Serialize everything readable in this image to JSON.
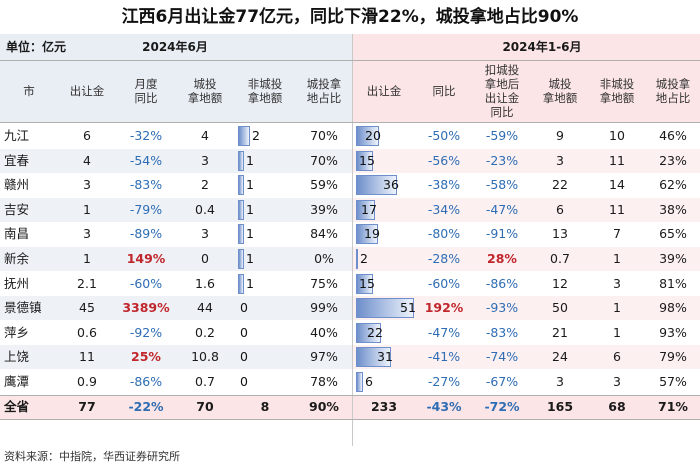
{
  "title": "江西6月出让金77亿元，同比下滑22%，城投拿地占比90%",
  "unit": "单位：亿元",
  "period_left": "2024年6月",
  "period_right": "2024年1-6月",
  "headers": {
    "city": "市",
    "m_rev": "出让金",
    "m_mom": "月度\n同比",
    "m_ct": "城投\n拿地额",
    "m_nct": "非城投\n拿地额",
    "m_share": "城投拿\n地占比",
    "y_rev": "出让金",
    "y_yoy": "同比",
    "y_ex": "扣城投\n拿地后\n出让金\n同比",
    "y_ct": "城投\n拿地额",
    "y_nct": "非城投\n拿地额",
    "y_share": "城投拿\n地占比"
  },
  "rows": [
    {
      "city": "九江",
      "m_rev": "6",
      "m_mom": "-32%",
      "m_ct": "4",
      "m_nct": "2",
      "m_share": "70%",
      "y_rev": "20",
      "y_yoy": "-50%",
      "y_ex": "-59%",
      "y_ct": "9",
      "y_nct": "10",
      "y_share": "46%"
    },
    {
      "city": "宜春",
      "m_rev": "4",
      "m_mom": "-54%",
      "m_ct": "3",
      "m_nct": "1",
      "m_share": "70%",
      "y_rev": "15",
      "y_yoy": "-56%",
      "y_ex": "-23%",
      "y_ct": "3",
      "y_nct": "11",
      "y_share": "23%"
    },
    {
      "city": "赣州",
      "m_rev": "3",
      "m_mom": "-83%",
      "m_ct": "2",
      "m_nct": "1",
      "m_share": "59%",
      "y_rev": "36",
      "y_yoy": "-38%",
      "y_ex": "-58%",
      "y_ct": "22",
      "y_nct": "14",
      "y_share": "62%"
    },
    {
      "city": "吉安",
      "m_rev": "1",
      "m_mom": "-79%",
      "m_ct": "0.4",
      "m_nct": "1",
      "m_share": "39%",
      "y_rev": "17",
      "y_yoy": "-34%",
      "y_ex": "-47%",
      "y_ct": "6",
      "y_nct": "11",
      "y_share": "38%"
    },
    {
      "city": "南昌",
      "m_rev": "3",
      "m_mom": "-89%",
      "m_ct": "3",
      "m_nct": "1",
      "m_share": "84%",
      "y_rev": "19",
      "y_yoy": "-80%",
      "y_ex": "-91%",
      "y_ct": "13",
      "y_nct": "7",
      "y_share": "65%"
    },
    {
      "city": "新余",
      "m_rev": "1",
      "m_mom": "149%",
      "m_ct": "0",
      "m_nct": "1",
      "m_share": "0%",
      "y_rev": "2",
      "y_yoy": "-28%",
      "y_ex": "28%",
      "y_ct": "0.7",
      "y_nct": "1",
      "y_share": "39%"
    },
    {
      "city": "抚州",
      "m_rev": "2.1",
      "m_mom": "-60%",
      "m_ct": "1.6",
      "m_nct": "1",
      "m_share": "75%",
      "y_rev": "15",
      "y_yoy": "-60%",
      "y_ex": "-86%",
      "y_ct": "12",
      "y_nct": "3",
      "y_share": "81%"
    },
    {
      "city": "景德镇",
      "m_rev": "45",
      "m_mom": "3389%",
      "m_ct": "44",
      "m_nct": "0",
      "m_share": "99%",
      "y_rev": "51",
      "y_yoy": "192%",
      "y_ex": "-93%",
      "y_ct": "50",
      "y_nct": "1",
      "y_share": "98%"
    },
    {
      "city": "萍乡",
      "m_rev": "0.6",
      "m_mom": "-92%",
      "m_ct": "0.2",
      "m_nct": "0",
      "m_share": "40%",
      "y_rev": "22",
      "y_yoy": "-47%",
      "y_ex": "-83%",
      "y_ct": "21",
      "y_nct": "1",
      "y_share": "93%"
    },
    {
      "city": "上饶",
      "m_rev": "11",
      "m_mom": "25%",
      "m_ct": "10.8",
      "m_nct": "0",
      "m_share": "97%",
      "y_rev": "31",
      "y_yoy": "-41%",
      "y_ex": "-74%",
      "y_ct": "24",
      "y_nct": "6",
      "y_share": "79%"
    },
    {
      "city": "鹰潭",
      "m_rev": "0.9",
      "m_mom": "-86%",
      "m_ct": "0.7",
      "m_nct": "0",
      "m_share": "78%",
      "y_rev": "6",
      "y_yoy": "-27%",
      "y_ex": "-67%",
      "y_ct": "3",
      "y_nct": "3",
      "y_share": "57%"
    }
  ],
  "total": {
    "city": "全省",
    "m_rev": "77",
    "m_mom": "-22%",
    "m_ct": "70",
    "m_nct": "8",
    "m_share": "90%",
    "y_rev": "233",
    "y_yoy": "-43%",
    "y_ex": "-72%",
    "y_ct": "165",
    "y_nct": "68",
    "y_share": "71%"
  },
  "footer": "资料来源：中指院，华西证券研究所"
}
